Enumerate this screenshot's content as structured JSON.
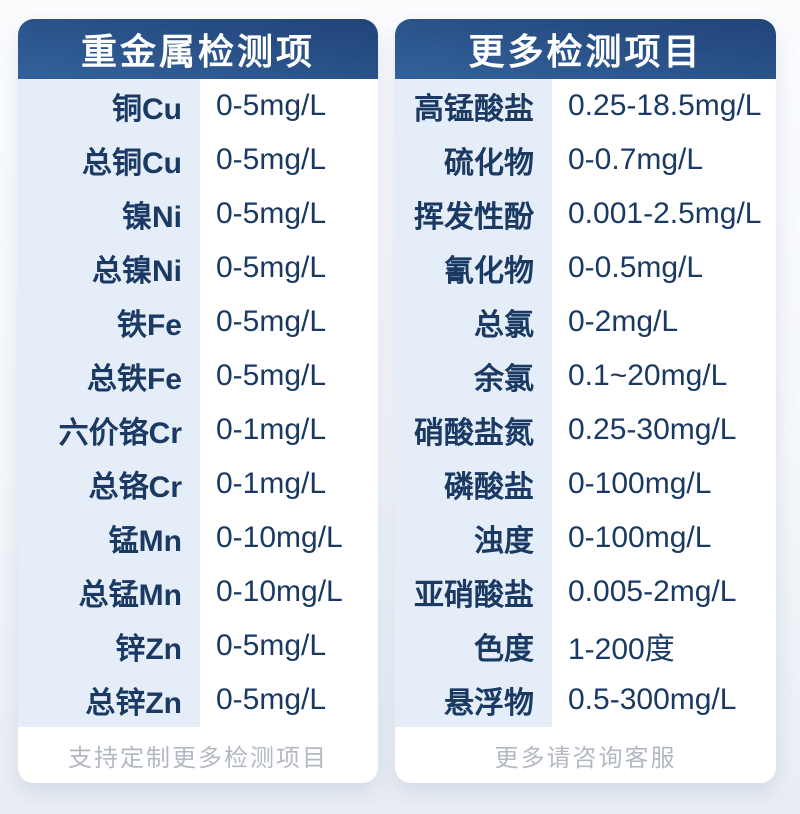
{
  "colors": {
    "header_bg_dark": "#204478",
    "header_bg_light": "#34619b",
    "header_text": "#ffffff",
    "label_column_bg": "#e4edf8",
    "value_column_bg": "#ffffff",
    "row_text": "#1a3a63",
    "footer_text": "#b3b9c3",
    "page_bg_top": "#fbfcfe",
    "page_bg_bottom": "#e9edf4"
  },
  "cards": [
    {
      "title": "重金属检测项",
      "footer": "支持定制更多检测项目",
      "rows": [
        {
          "label": "铜Cu",
          "value": "0-5mg/L"
        },
        {
          "label": "总铜Cu",
          "value": "0-5mg/L"
        },
        {
          "label": "镍Ni",
          "value": "0-5mg/L"
        },
        {
          "label": "总镍Ni",
          "value": "0-5mg/L"
        },
        {
          "label": "铁Fe",
          "value": "0-5mg/L"
        },
        {
          "label": "总铁Fe",
          "value": "0-5mg/L"
        },
        {
          "label": "六价铬Cr",
          "value": "0-1mg/L"
        },
        {
          "label": "总铬Cr",
          "value": "0-1mg/L"
        },
        {
          "label": "锰Mn",
          "value": "0-10mg/L"
        },
        {
          "label": "总锰Mn",
          "value": "0-10mg/L"
        },
        {
          "label": "锌Zn",
          "value": "0-5mg/L"
        },
        {
          "label": "总锌Zn",
          "value": "0-5mg/L"
        }
      ]
    },
    {
      "title": "更多检测项目",
      "footer": "更多请咨询客服",
      "rows": [
        {
          "label": "高锰酸盐",
          "value": "0.25-18.5mg/L"
        },
        {
          "label": "硫化物",
          "value": "0-0.7mg/L"
        },
        {
          "label": "挥发性酚",
          "value": "0.001-2.5mg/L"
        },
        {
          "label": "氰化物",
          "value": "0-0.5mg/L"
        },
        {
          "label": "总氯",
          "value": "0-2mg/L"
        },
        {
          "label": "余氯",
          "value": "0.1~20mg/L"
        },
        {
          "label": "硝酸盐氮",
          "value": "0.25-30mg/L"
        },
        {
          "label": "磷酸盐",
          "value": "0-100mg/L"
        },
        {
          "label": "浊度",
          "value": "0-100mg/L"
        },
        {
          "label": "亚硝酸盐",
          "value": "0.005-2mg/L"
        },
        {
          "label": "色度",
          "value": "1-200度"
        },
        {
          "label": "悬浮物",
          "value": "0.5-300mg/L"
        }
      ]
    }
  ],
  "chart_data": [
    {
      "type": "table",
      "title": "重金属检测项",
      "rows": [
        [
          "铜Cu",
          "0-5mg/L"
        ],
        [
          "总铜Cu",
          "0-5mg/L"
        ],
        [
          "镍Ni",
          "0-5mg/L"
        ],
        [
          "总镍Ni",
          "0-5mg/L"
        ],
        [
          "铁Fe",
          "0-5mg/L"
        ],
        [
          "总铁Fe",
          "0-5mg/L"
        ],
        [
          "六价铬Cr",
          "0-1mg/L"
        ],
        [
          "总铬Cr",
          "0-1mg/L"
        ],
        [
          "锰Mn",
          "0-10mg/L"
        ],
        [
          "总锰Mn",
          "0-10mg/L"
        ],
        [
          "锌Zn",
          "0-5mg/L"
        ],
        [
          "总锌Zn",
          "0-5mg/L"
        ]
      ],
      "note": "支持定制更多检测项目"
    },
    {
      "type": "table",
      "title": "更多检测项目",
      "rows": [
        [
          "高锰酸盐",
          "0.25-18.5mg/L"
        ],
        [
          "硫化物",
          "0-0.7mg/L"
        ],
        [
          "挥发性酚",
          "0.001-2.5mg/L"
        ],
        [
          "氰化物",
          "0-0.5mg/L"
        ],
        [
          "总氯",
          "0-2mg/L"
        ],
        [
          "余氯",
          "0.1~20mg/L"
        ],
        [
          "硝酸盐氮",
          "0.25-30mg/L"
        ],
        [
          "磷酸盐",
          "0-100mg/L"
        ],
        [
          "浊度",
          "0-100mg/L"
        ],
        [
          "亚硝酸盐",
          "0.005-2mg/L"
        ],
        [
          "色度",
          "1-200度"
        ],
        [
          "悬浮物",
          "0.5-300mg/L"
        ]
      ],
      "note": "更多请咨询客服"
    }
  ]
}
